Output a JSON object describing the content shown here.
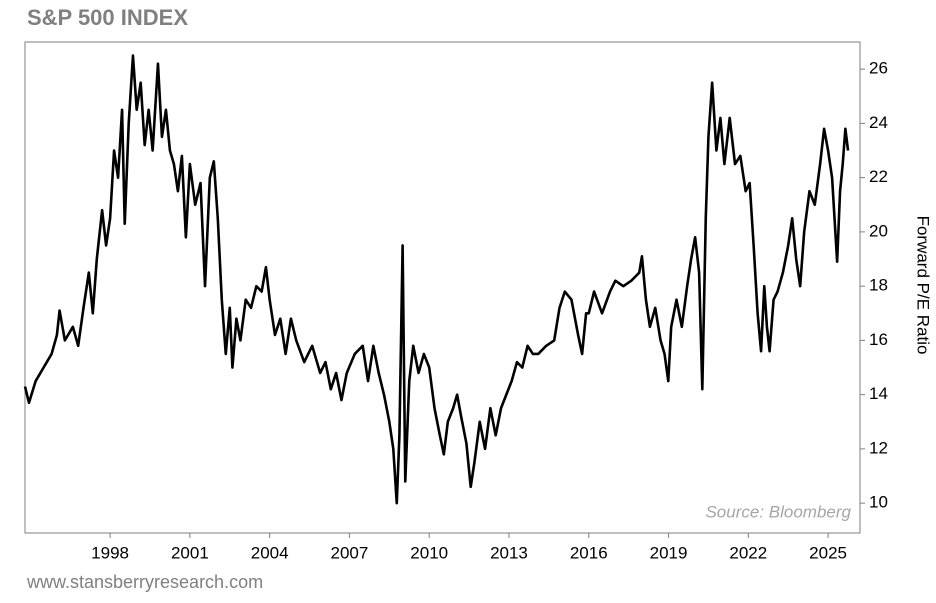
{
  "chart_data": {
    "type": "line",
    "title": "S&P 500 INDEX",
    "y_label": "Forward P/E Ratio",
    "annotation": "Source: Bloomberg",
    "footer": "www.stansberryresearch.com",
    "xlim": [
      1994.8,
      2026.2
    ],
    "xticks": [
      1998,
      2001,
      2004,
      2007,
      2010,
      2013,
      2016,
      2019,
      2022,
      2025
    ],
    "ylim": [
      8.9,
      27
    ],
    "yticks": [
      10,
      12,
      14,
      16,
      18,
      20,
      22,
      24,
      26
    ],
    "y_axis_side": "right",
    "grid": false,
    "series": [
      {
        "name": "Forward P/E Ratio",
        "color": "#000000",
        "x": [
          1994.8,
          1994.95,
          1995.2,
          1995.5,
          1995.8,
          1996.0,
          1996.1,
          1996.3,
          1996.6,
          1996.8,
          1997.0,
          1997.2,
          1997.35,
          1997.5,
          1997.7,
          1997.85,
          1998.0,
          1998.15,
          1998.3,
          1998.45,
          1998.55,
          1998.7,
          1998.86,
          1999.0,
          1999.15,
          1999.3,
          1999.45,
          1999.6,
          1999.8,
          1999.95,
          2000.1,
          2000.25,
          2000.4,
          2000.55,
          2000.7,
          2000.85,
          2001.0,
          2001.2,
          2001.4,
          2001.57,
          2001.75,
          2001.9,
          2002.05,
          2002.2,
          2002.35,
          2002.5,
          2002.6,
          2002.75,
          2002.9,
          2003.1,
          2003.3,
          2003.5,
          2003.7,
          2003.86,
          2004.0,
          2004.2,
          2004.4,
          2004.6,
          2004.8,
          2005.0,
          2005.3,
          2005.6,
          2005.9,
          2006.1,
          2006.3,
          2006.5,
          2006.7,
          2006.9,
          2007.2,
          2007.5,
          2007.7,
          2007.9,
          2008.1,
          2008.3,
          2008.5,
          2008.65,
          2008.78,
          2008.88,
          2009.0,
          2009.1,
          2009.25,
          2009.4,
          2009.6,
          2009.8,
          2010.0,
          2010.2,
          2010.4,
          2010.55,
          2010.7,
          2010.9,
          2011.05,
          2011.2,
          2011.4,
          2011.56,
          2011.7,
          2011.9,
          2012.1,
          2012.3,
          2012.5,
          2012.7,
          2012.9,
          2013.1,
          2013.3,
          2013.5,
          2013.7,
          2013.9,
          2014.1,
          2014.4,
          2014.7,
          2014.9,
          2015.1,
          2015.35,
          2015.6,
          2015.75,
          2015.9,
          2016.0,
          2016.2,
          2016.5,
          2016.8,
          2017.0,
          2017.3,
          2017.6,
          2017.9,
          2018.0,
          2018.15,
          2018.3,
          2018.5,
          2018.7,
          2018.85,
          2018.99,
          2019.1,
          2019.3,
          2019.5,
          2019.7,
          2019.85,
          2020.0,
          2020.15,
          2020.27,
          2020.4,
          2020.5,
          2020.64,
          2020.8,
          2020.95,
          2021.1,
          2021.3,
          2021.5,
          2021.7,
          2021.9,
          2022.05,
          2022.2,
          2022.35,
          2022.48,
          2022.6,
          2022.7,
          2022.8,
          2022.95,
          2023.1,
          2023.3,
          2023.5,
          2023.65,
          2023.8,
          2023.95,
          2024.1,
          2024.3,
          2024.5,
          2024.7,
          2024.85,
          2025.0,
          2025.15,
          2025.34,
          2025.45,
          2025.55,
          2025.65,
          2025.75
        ],
        "values": [
          14.3,
          13.7,
          14.5,
          15.0,
          15.5,
          16.2,
          17.1,
          16.0,
          16.5,
          15.8,
          17.2,
          18.5,
          17.0,
          19.0,
          20.8,
          19.5,
          20.5,
          23.0,
          22.0,
          24.5,
          20.3,
          24.0,
          26.5,
          24.5,
          25.5,
          23.2,
          24.5,
          23.0,
          26.2,
          23.5,
          24.5,
          23.0,
          22.5,
          21.5,
          22.8,
          19.8,
          22.5,
          21.0,
          21.8,
          18.0,
          22.0,
          22.6,
          20.5,
          17.5,
          15.5,
          17.2,
          15.0,
          16.8,
          16.0,
          17.5,
          17.2,
          18.0,
          17.8,
          18.7,
          17.5,
          16.2,
          16.8,
          15.5,
          16.8,
          16.0,
          15.2,
          15.8,
          14.8,
          15.2,
          14.2,
          14.8,
          13.8,
          14.8,
          15.5,
          15.8,
          14.5,
          15.8,
          14.8,
          14.0,
          13.0,
          12.0,
          10.0,
          12.5,
          19.5,
          10.8,
          14.5,
          15.8,
          14.8,
          15.5,
          15.0,
          13.5,
          12.5,
          11.8,
          13.0,
          13.5,
          14.0,
          13.2,
          12.2,
          10.6,
          11.5,
          13.0,
          12.0,
          13.5,
          12.5,
          13.5,
          14.0,
          14.5,
          15.2,
          15.0,
          15.8,
          15.5,
          15.5,
          15.8,
          16.0,
          17.2,
          17.8,
          17.5,
          16.2,
          15.5,
          17.0,
          17.0,
          17.8,
          17.0,
          17.8,
          18.2,
          18.0,
          18.2,
          18.5,
          19.1,
          17.5,
          16.5,
          17.2,
          16.0,
          15.5,
          14.5,
          16.5,
          17.5,
          16.5,
          18.0,
          19.0,
          19.8,
          18.5,
          14.2,
          20.5,
          23.5,
          25.5,
          23.0,
          24.2,
          22.5,
          24.2,
          22.5,
          22.8,
          21.5,
          21.8,
          19.5,
          17.0,
          15.6,
          18.0,
          16.5,
          15.6,
          17.5,
          17.8,
          18.5,
          19.5,
          20.5,
          19.0,
          18.0,
          20.0,
          21.5,
          21.0,
          22.5,
          23.8,
          23.0,
          22.0,
          18.9,
          21.5,
          22.5,
          23.8,
          23.0
        ]
      }
    ]
  }
}
